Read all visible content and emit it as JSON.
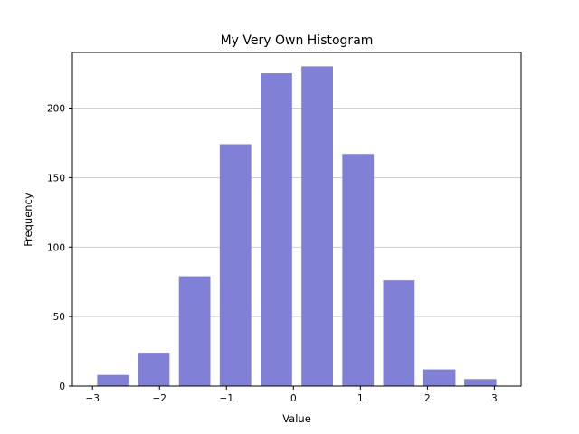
{
  "chart_data": {
    "type": "bar",
    "title": "My Very Own Histogram",
    "xlabel": "Value",
    "ylabel": "Frequency",
    "bar_color": "#8080d6",
    "grid_color": "#c0c0c0",
    "grid": "y-major",
    "xlim": [
      -3.3,
      3.4
    ],
    "ylim": [
      0,
      240
    ],
    "x_ticks": [
      -3,
      -2,
      -1,
      0,
      1,
      2,
      3
    ],
    "x_tick_labels": [
      "−3",
      "−2",
      "−1",
      "0",
      "1",
      "2",
      "3"
    ],
    "y_ticks": [
      0,
      50,
      100,
      150,
      200
    ],
    "y_tick_labels": [
      "0",
      "50",
      "100",
      "150",
      "200"
    ],
    "bins": [
      {
        "x0": -2.93,
        "x1": -2.45,
        "value": 8
      },
      {
        "x0": -2.32,
        "x1": -1.85,
        "value": 24
      },
      {
        "x0": -1.71,
        "x1": -1.24,
        "value": 79
      },
      {
        "x0": -1.1,
        "x1": -0.63,
        "value": 174
      },
      {
        "x0": -0.49,
        "x1": -0.02,
        "value": 225
      },
      {
        "x0": 0.12,
        "x1": 0.59,
        "value": 230
      },
      {
        "x0": 0.73,
        "x1": 1.2,
        "value": 167
      },
      {
        "x0": 1.34,
        "x1": 1.81,
        "value": 76
      },
      {
        "x0": 1.94,
        "x1": 2.42,
        "value": 12
      },
      {
        "x0": 2.55,
        "x1": 3.03,
        "value": 5
      }
    ]
  }
}
